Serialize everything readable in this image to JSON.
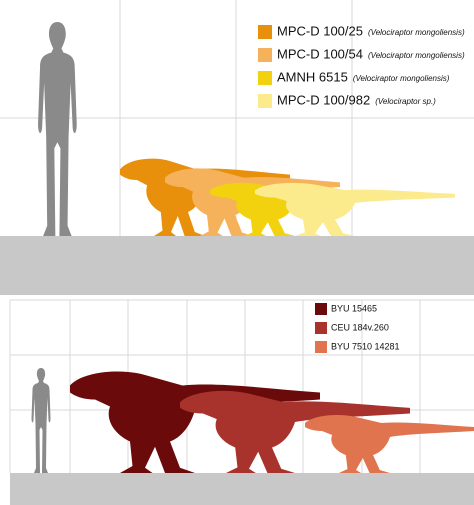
{
  "panels": [
    {
      "legend": [
        {
          "name": "MPC-D 100/25",
          "species": "(Velociraptor mongoliensis)",
          "color": "#e8900c"
        },
        {
          "name": "MPC-D 100/54",
          "species": "(Velociraptor mongoliensis)",
          "color": "#f6b25a"
        },
        {
          "name": "AMNH 6515",
          "species": "(Velociraptor mongoliensis)",
          "color": "#f2d20e"
        },
        {
          "name": "MPC-D 100/982",
          "species": "(Velociraptor sp.)",
          "color": "#fbeb8c"
        }
      ]
    },
    {
      "legend": [
        {
          "name": "BYU 15465",
          "color": "#6b0a0a"
        },
        {
          "name": "CEU 184v.260",
          "color": "#a8332c"
        },
        {
          "name": "BYU 7510 14281",
          "color": "#e0744f"
        }
      ]
    }
  ]
}
